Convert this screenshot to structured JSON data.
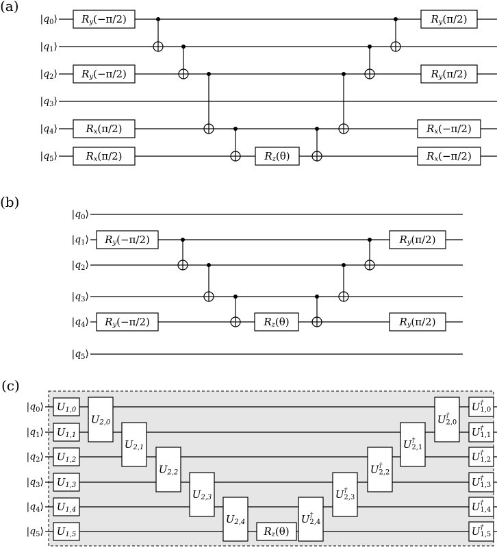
{
  "panels": {
    "a": {
      "label": "(a)"
    },
    "b": {
      "label": "(b)"
    },
    "c": {
      "label": "(c)"
    }
  },
  "qubits": [
    "|q0⟩",
    "|q1⟩",
    "|q2⟩",
    "|q3⟩",
    "|q4⟩",
    "|q5⟩"
  ],
  "gate_text": {
    "ry_neg": "Ry(−π/2)",
    "ry_pos": "Ry(π/2)",
    "rx_pos": "Rx(π/2)",
    "rx_neg": "Rx(−π/2)",
    "rz": "Rz(θ)"
  },
  "circuit_c": {
    "u1": [
      "U1,0",
      "U1,1",
      "U1,2",
      "U1,3",
      "U1,4",
      "U1,5"
    ],
    "u2": [
      "U2,0",
      "U2,1",
      "U2,2",
      "U2,3",
      "U2,4"
    ],
    "u2_dag": [
      "U†2,4",
      "U†2,3",
      "U†2,2",
      "U†2,1",
      "U†2,0"
    ],
    "u1_dag": [
      "U†1,0",
      "U†1,1",
      "U†1,2",
      "U†1,3",
      "U†1,4",
      "U†1,5"
    ]
  }
}
